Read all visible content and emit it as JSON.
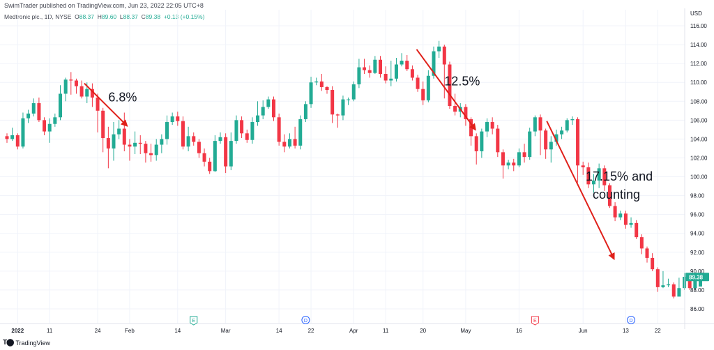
{
  "header": {
    "published": "SwimTrader published on TradingView.com, Jun 23, 2022 22:05 UTC+8",
    "symbol": "Medtronic plc., 1D, NYSE",
    "ohlc": {
      "O": "88.37",
      "H": "89.60",
      "L": "88.37",
      "C": "89.38",
      "change": "+0.13 (+0.15%)"
    }
  },
  "footer": {
    "brand": "TradingView",
    "logo": "tradingview-logo-icon"
  },
  "colors": {
    "up": "#22ab94",
    "down": "#f23645",
    "arrow": "#e0201a",
    "grid": "#f0f3fa",
    "price_tag": "#22ab94",
    "earnings": "#22ab94",
    "dividend": "#2962ff",
    "split": "#f23645"
  },
  "chart_data": {
    "type": "candlestick",
    "currency": "USD",
    "ylim": [
      85,
      117
    ],
    "y_ticks": [
      "116.00",
      "114.00",
      "112.00",
      "110.00",
      "108.00",
      "106.00",
      "104.00",
      "102.00",
      "100.00",
      "98.00",
      "96.00",
      "94.00",
      "92.00",
      "90.00",
      "88.00",
      "86.00"
    ],
    "x_labels": [
      {
        "label": "2022",
        "index": 2,
        "bold": true
      },
      {
        "label": "11",
        "index": 8
      },
      {
        "label": "24",
        "index": 17
      },
      {
        "label": "Feb",
        "index": 23
      },
      {
        "label": "14",
        "index": 32
      },
      {
        "label": "Mar",
        "index": 41
      },
      {
        "label": "14",
        "index": 51
      },
      {
        "label": "22",
        "index": 57
      },
      {
        "label": "Apr",
        "index": 65
      },
      {
        "label": "11",
        "index": 71
      },
      {
        "label": "20",
        "index": 78
      },
      {
        "label": "May",
        "index": 86
      },
      {
        "label": "16",
        "index": 96
      },
      {
        "label": "Jun",
        "index": 108
      },
      {
        "label": "13",
        "index": 116
      },
      {
        "label": "22",
        "index": 122
      }
    ],
    "last_price": "89.38",
    "candles": [
      [
        104.3,
        104.0,
        104.6,
        103.6
      ],
      [
        104.0,
        104.4,
        105.2,
        103.8
      ],
      [
        104.4,
        103.2,
        104.6,
        102.9
      ],
      [
        103.2,
        106.2,
        106.8,
        103.0
      ],
      [
        106.2,
        106.7,
        107.1,
        105.7
      ],
      [
        106.7,
        107.8,
        108.3,
        106.4
      ],
      [
        107.8,
        106.0,
        108.4,
        105.8
      ],
      [
        106.0,
        104.8,
        106.3,
        104.4
      ],
      [
        104.8,
        105.6,
        106.2,
        103.6
      ],
      [
        105.6,
        106.3,
        106.7,
        105.3
      ],
      [
        106.3,
        108.8,
        109.7,
        106.0
      ],
      [
        108.8,
        110.3,
        110.5,
        108.0
      ],
      [
        110.3,
        110.2,
        111.1,
        108.7
      ],
      [
        110.2,
        109.6,
        110.4,
        108.8
      ],
      [
        109.6,
        108.5,
        110.2,
        108.3
      ],
      [
        108.5,
        109.3,
        110.0,
        107.8
      ],
      [
        109.3,
        108.4,
        109.9,
        107.4
      ],
      [
        108.4,
        107.0,
        108.8,
        104.7
      ],
      [
        107.0,
        104.1,
        107.3,
        102.6
      ],
      [
        104.1,
        103.0,
        105.3,
        100.9
      ],
      [
        103.0,
        104.5,
        105.8,
        101.7
      ],
      [
        104.5,
        105.1,
        106.0,
        104.0
      ],
      [
        105.1,
        103.4,
        106.8,
        102.7
      ],
      [
        103.4,
        103.2,
        104.0,
        101.7
      ],
      [
        103.2,
        103.6,
        104.8,
        102.4
      ],
      [
        103.6,
        103.5,
        104.4,
        102.4
      ],
      [
        103.5,
        102.5,
        103.8,
        101.5
      ],
      [
        102.5,
        102.3,
        103.5,
        101.6
      ],
      [
        102.3,
        103.4,
        104.0,
        101.7
      ],
      [
        103.4,
        104.0,
        104.5,
        102.5
      ],
      [
        104.0,
        105.8,
        106.5,
        103.4
      ],
      [
        105.8,
        106.4,
        106.8,
        105.5
      ],
      [
        106.4,
        105.9,
        106.9,
        105.4
      ],
      [
        105.9,
        103.2,
        106.4,
        102.9
      ],
      [
        103.2,
        104.3,
        105.3,
        102.7
      ],
      [
        104.3,
        103.7,
        104.7,
        103.3
      ],
      [
        103.7,
        102.5,
        104.0,
        102.0
      ],
      [
        102.5,
        101.6,
        103.0,
        101.1
      ],
      [
        101.6,
        100.6,
        102.0,
        100.3
      ],
      [
        100.6,
        103.8,
        104.4,
        100.5
      ],
      [
        103.8,
        104.2,
        104.7,
        103.5
      ],
      [
        104.2,
        101.1,
        104.6,
        100.4
      ],
      [
        101.1,
        103.8,
        104.7,
        100.7
      ],
      [
        103.8,
        106.0,
        106.5,
        103.5
      ],
      [
        106.0,
        104.6,
        106.4,
        104.1
      ],
      [
        104.6,
        103.9,
        105.0,
        103.6
      ],
      [
        103.9,
        105.8,
        106.3,
        103.5
      ],
      [
        105.8,
        106.5,
        108.0,
        105.4
      ],
      [
        106.5,
        107.4,
        108.1,
        106.1
      ],
      [
        107.4,
        108.2,
        108.5,
        107.2
      ],
      [
        108.2,
        106.3,
        108.5,
        105.9
      ],
      [
        106.3,
        103.7,
        106.7,
        103.3
      ],
      [
        103.7,
        103.2,
        104.5,
        102.6
      ],
      [
        103.2,
        104.0,
        104.6,
        103.0
      ],
      [
        104.0,
        103.3,
        105.3,
        103.0
      ],
      [
        103.3,
        106.1,
        106.5,
        102.9
      ],
      [
        106.1,
        107.7,
        108.0,
        105.8
      ],
      [
        107.7,
        110.0,
        110.6,
        107.3
      ],
      [
        110.0,
        110.1,
        110.5,
        109.7
      ],
      [
        110.1,
        109.5,
        110.9,
        109.1
      ],
      [
        109.5,
        109.2,
        109.6,
        108.8
      ],
      [
        109.2,
        106.6,
        109.6,
        105.7
      ],
      [
        106.6,
        106.5,
        106.7,
        105.2
      ],
      [
        106.5,
        108.2,
        108.6,
        106.0
      ],
      [
        108.2,
        108.2,
        108.4,
        107.6
      ],
      [
        108.2,
        109.8,
        110.1,
        108.0
      ],
      [
        109.8,
        111.6,
        112.5,
        109.4
      ],
      [
        111.6,
        111.3,
        112.5,
        110.9
      ],
      [
        111.3,
        111.0,
        111.8,
        110.5
      ],
      [
        111.0,
        112.4,
        112.8,
        110.9
      ],
      [
        112.4,
        110.9,
        112.8,
        110.5
      ],
      [
        110.9,
        110.2,
        111.7,
        109.9
      ],
      [
        110.2,
        110.4,
        112.3,
        109.6
      ],
      [
        110.4,
        111.9,
        112.6,
        110.1
      ],
      [
        111.9,
        112.3,
        113.1,
        111.7
      ],
      [
        112.3,
        111.4,
        112.9,
        111.2
      ],
      [
        111.4,
        110.5,
        111.8,
        110.2
      ],
      [
        110.5,
        109.3,
        110.8,
        109.0
      ],
      [
        109.3,
        108.1,
        110.1,
        107.6
      ],
      [
        108.1,
        110.7,
        111.3,
        107.9
      ],
      [
        110.7,
        113.3,
        113.8,
        110.4
      ],
      [
        113.3,
        113.8,
        114.4,
        112.6
      ],
      [
        113.8,
        111.9,
        114.0,
        108.3
      ],
      [
        111.9,
        107.5,
        112.2,
        107.2
      ],
      [
        107.5,
        106.9,
        108.8,
        106.5
      ],
      [
        106.9,
        107.4,
        107.8,
        106.3
      ],
      [
        107.4,
        106.1,
        107.7,
        105.4
      ],
      [
        106.1,
        104.3,
        106.3,
        103.3
      ],
      [
        104.3,
        102.7,
        104.6,
        101.3
      ],
      [
        102.7,
        104.8,
        105.1,
        102.0
      ],
      [
        104.8,
        105.8,
        106.2,
        104.2
      ],
      [
        105.8,
        105.1,
        106.3,
        104.5
      ],
      [
        105.1,
        102.6,
        105.5,
        102.1
      ],
      [
        102.6,
        101.2,
        102.9,
        99.8
      ],
      [
        101.2,
        101.5,
        101.8,
        100.8
      ],
      [
        101.5,
        101.2,
        101.9,
        100.6
      ],
      [
        101.2,
        102.6,
        103.0,
        101.0
      ],
      [
        102.6,
        102.1,
        103.5,
        101.5
      ],
      [
        102.1,
        104.8,
        105.2,
        101.8
      ],
      [
        104.8,
        106.3,
        106.5,
        104.3
      ],
      [
        106.3,
        104.9,
        106.6,
        102.3
      ],
      [
        104.9,
        102.9,
        105.1,
        101.9
      ],
      [
        102.9,
        103.7,
        104.3,
        101.5
      ],
      [
        103.7,
        104.5,
        105.0,
        103.3
      ],
      [
        104.5,
        104.9,
        105.3,
        104.0
      ],
      [
        104.9,
        106.0,
        106.2,
        104.7
      ],
      [
        106.0,
        106.1,
        106.4,
        105.5
      ],
      [
        106.1,
        101.2,
        106.3,
        99.4
      ],
      [
        101.2,
        101.0,
        101.6,
        100.2
      ],
      [
        101.0,
        99.2,
        101.5,
        98.8
      ],
      [
        99.2,
        99.6,
        100.3,
        98.3
      ],
      [
        99.6,
        100.9,
        101.4,
        98.8
      ],
      [
        100.9,
        99.1,
        101.2,
        98.5
      ],
      [
        99.1,
        96.9,
        99.3,
        96.7
      ],
      [
        96.9,
        95.7,
        97.3,
        95.3
      ],
      [
        95.7,
        96.1,
        96.4,
        95.4
      ],
      [
        96.1,
        94.9,
        96.4,
        94.5
      ],
      [
        94.9,
        95.1,
        95.7,
        94.6
      ],
      [
        95.1,
        93.6,
        95.4,
        93.4
      ],
      [
        93.6,
        92.4,
        93.9,
        91.8
      ],
      [
        92.4,
        91.4,
        92.6,
        90.9
      ],
      [
        91.4,
        90.2,
        91.9,
        90.0
      ],
      [
        90.2,
        88.3,
        90.4,
        87.8
      ],
      [
        88.3,
        88.5,
        90.0,
        88.2
      ],
      [
        88.5,
        88.6,
        89.2,
        88.3
      ],
      [
        88.6,
        87.3,
        88.8,
        87.1
      ],
      [
        87.3,
        88.2,
        89.3,
        87.6
      ],
      [
        88.2,
        89.4,
        89.8,
        88.0
      ],
      [
        89.4,
        88.2,
        89.7,
        88.0
      ],
      [
        88.2,
        89.25,
        89.5,
        88.0
      ],
      [
        88.37,
        89.38,
        89.6,
        88.37
      ]
    ],
    "events": [
      {
        "type": "earnings",
        "letter": "E",
        "index": 35
      },
      {
        "type": "dividend",
        "letter": "D",
        "index": 56
      },
      {
        "type": "split",
        "letter": "E",
        "index": 99
      },
      {
        "type": "dividend",
        "letter": "D",
        "index": 117
      }
    ],
    "annotations": [
      {
        "text": "6.8%",
        "x": 19,
        "y": 108.0,
        "arrow_from": [
          14.5,
          109.9
        ],
        "arrow_to": [
          22.5,
          105.4
        ]
      },
      {
        "text": "12.5%",
        "x": 82,
        "y": 109.7,
        "arrow_from": [
          76.8,
          113.5
        ],
        "arrow_to": [
          87.8,
          105.0
        ]
      },
      {
        "text": "17.15% and",
        "text2": "counting",
        "x": 108.5,
        "y": 99.6,
        "arrow_from": [
          101.2,
          105.9
        ],
        "arrow_to": [
          113.8,
          91.3
        ]
      }
    ]
  }
}
